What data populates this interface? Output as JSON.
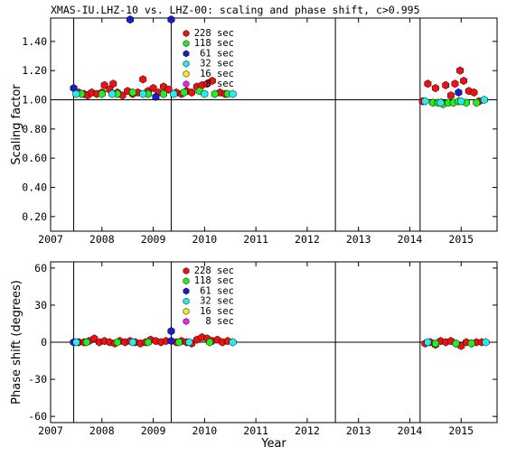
{
  "chart_data": {
    "title": "XMAS-IU.LHZ-10 vs. LHZ-00: scaling and phase shift, c>0.995",
    "xlabel": "Year",
    "xticks": [
      "2007",
      "2008",
      "2009",
      "2010",
      "2011",
      "2012",
      "2013",
      "2014",
      "2015"
    ],
    "vlines": [
      2007.45,
      2009.35,
      2012.55,
      2014.2
    ],
    "legend": [
      {
        "name": "228 sec",
        "color": "#ee1111"
      },
      {
        "name": "118 sec",
        "color": "#22ee22"
      },
      {
        "name": "61 sec",
        "color": "#1a1ad0"
      },
      {
        "name": "32 sec",
        "color": "#22eeee"
      },
      {
        "name": "16 sec",
        "color": "#eeee22"
      },
      {
        "name": "8 sec",
        "color": "#ee22ee"
      }
    ],
    "panels": [
      {
        "type": "scatter",
        "ylabel": "Scaling factor",
        "yticks": [
          "0.20",
          "0.40",
          "0.60",
          "0.80",
          "1.00",
          "1.20",
          "1.40"
        ],
        "xlim": [
          2007,
          2015.7
        ],
        "ylim": [
          0.1,
          1.56
        ],
        "hline": 1.0,
        "series": [
          {
            "name": "228 sec",
            "color": "#ee1111",
            "points": [
              [
                2007.55,
                1.05
              ],
              [
                2007.65,
                1.04
              ],
              [
                2007.72,
                1.03
              ],
              [
                2007.8,
                1.05
              ],
              [
                2007.9,
                1.04
              ],
              [
                2008.0,
                1.05
              ],
              [
                2008.05,
                1.1
              ],
              [
                2008.15,
                1.07
              ],
              [
                2008.22,
                1.11
              ],
              [
                2008.3,
                1.05
              ],
              [
                2008.4,
                1.03
              ],
              [
                2008.5,
                1.06
              ],
              [
                2008.6,
                1.04
              ],
              [
                2008.7,
                1.05
              ],
              [
                2008.8,
                1.14
              ],
              [
                2008.9,
                1.06
              ],
              [
                2009.0,
                1.08
              ],
              [
                2009.1,
                1.05
              ],
              [
                2009.2,
                1.09
              ],
              [
                2009.3,
                1.07
              ],
              [
                2009.45,
                1.05
              ],
              [
                2009.55,
                1.04
              ],
              [
                2009.65,
                1.06
              ],
              [
                2009.75,
                1.05
              ],
              [
                2009.85,
                1.09
              ],
              [
                2009.95,
                1.1
              ],
              [
                2010.05,
                1.11
              ],
              [
                2010.15,
                1.13
              ],
              [
                2010.3,
                1.05
              ],
              [
                2010.4,
                1.04
              ],
              [
                2014.25,
                0.99
              ],
              [
                2014.35,
                1.11
              ],
              [
                2014.5,
                1.08
              ],
              [
                2014.62,
                0.98
              ],
              [
                2014.7,
                1.1
              ],
              [
                2014.8,
                1.03
              ],
              [
                2014.88,
                1.11
              ],
              [
                2014.98,
                1.2
              ],
              [
                2015.05,
                1.13
              ],
              [
                2015.15,
                1.06
              ],
              [
                2015.25,
                1.05
              ],
              [
                2015.35,
                0.99
              ]
            ]
          },
          {
            "name": "118 sec",
            "color": "#22ee22",
            "points": [
              [
                2007.6,
                1.04
              ],
              [
                2008.0,
                1.04
              ],
              [
                2008.3,
                1.04
              ],
              [
                2008.6,
                1.05
              ],
              [
                2008.9,
                1.04
              ],
              [
                2009.2,
                1.04
              ],
              [
                2009.6,
                1.05
              ],
              [
                2009.9,
                1.06
              ],
              [
                2010.2,
                1.04
              ],
              [
                2010.45,
                1.04
              ],
              [
                2014.45,
                0.98
              ],
              [
                2014.55,
                0.98
              ],
              [
                2014.65,
                0.97
              ],
              [
                2014.75,
                0.98
              ],
              [
                2014.85,
                0.98
              ],
              [
                2014.95,
                0.99
              ],
              [
                2015.1,
                0.98
              ],
              [
                2015.3,
                0.98
              ]
            ]
          },
          {
            "name": "61 sec",
            "color": "#1a1ad0",
            "points": [
              [
                2007.45,
                1.08
              ],
              [
                2008.55,
                1.55
              ],
              [
                2009.05,
                1.02
              ],
              [
                2009.35,
                1.55
              ],
              [
                2014.95,
                1.05
              ]
            ]
          },
          {
            "name": "32 sec",
            "color": "#22eeee",
            "points": [
              [
                2007.5,
                1.04
              ],
              [
                2008.2,
                1.04
              ],
              [
                2008.8,
                1.04
              ],
              [
                2009.4,
                1.04
              ],
              [
                2010.0,
                1.04
              ],
              [
                2010.55,
                1.04
              ],
              [
                2014.3,
                0.99
              ],
              [
                2014.6,
                0.98
              ],
              [
                2015.0,
                0.99
              ],
              [
                2015.45,
                1.0
              ]
            ]
          },
          {
            "name": "16 sec",
            "color": "#eeee22",
            "points": []
          },
          {
            "name": "8 sec",
            "color": "#ee22ee",
            "points": []
          }
        ]
      },
      {
        "type": "scatter",
        "ylabel": "Phase shift (degrees)",
        "yticks": [
          "-60",
          "-30",
          "0",
          "30",
          "60"
        ],
        "xlim": [
          2007,
          2015.7
        ],
        "ylim": [
          -65,
          65
        ],
        "hline": 0,
        "series": [
          {
            "name": "228 sec",
            "color": "#ee1111",
            "points": [
              [
                2007.55,
                0
              ],
              [
                2007.65,
                0
              ],
              [
                2007.75,
                1
              ],
              [
                2007.85,
                3
              ],
              [
                2007.95,
                0
              ],
              [
                2008.05,
                1
              ],
              [
                2008.15,
                0
              ],
              [
                2008.25,
                -1
              ],
              [
                2008.35,
                1
              ],
              [
                2008.45,
                0
              ],
              [
                2008.55,
                1
              ],
              [
                2008.65,
                0
              ],
              [
                2008.75,
                -1
              ],
              [
                2008.85,
                0
              ],
              [
                2008.95,
                2
              ],
              [
                2009.05,
                1
              ],
              [
                2009.15,
                0
              ],
              [
                2009.25,
                1
              ],
              [
                2009.45,
                0
              ],
              [
                2009.55,
                1
              ],
              [
                2009.65,
                0
              ],
              [
                2009.75,
                -1
              ],
              [
                2009.85,
                2
              ],
              [
                2009.95,
                4
              ],
              [
                2010.05,
                3
              ],
              [
                2010.15,
                1
              ],
              [
                2010.25,
                2
              ],
              [
                2010.35,
                0
              ],
              [
                2010.45,
                1
              ],
              [
                2014.3,
                -1
              ],
              [
                2014.4,
                0
              ],
              [
                2014.5,
                -2
              ],
              [
                2014.6,
                1
              ],
              [
                2014.7,
                0
              ],
              [
                2014.8,
                1
              ],
              [
                2014.9,
                -1
              ],
              [
                2015.0,
                -3
              ],
              [
                2015.1,
                0
              ],
              [
                2015.2,
                -1
              ],
              [
                2015.3,
                0
              ],
              [
                2015.4,
                0
              ]
            ]
          },
          {
            "name": "118 sec",
            "color": "#22ee22",
            "points": [
              [
                2007.7,
                0
              ],
              [
                2008.3,
                0
              ],
              [
                2008.9,
                0
              ],
              [
                2009.5,
                0
              ],
              [
                2010.1,
                0
              ],
              [
                2014.5,
                -1
              ],
              [
                2014.9,
                -1
              ],
              [
                2015.2,
                -1
              ]
            ]
          },
          {
            "name": "61 sec",
            "color": "#1a1ad0",
            "points": [
              [
                2007.45,
                0
              ],
              [
                2009.35,
                9
              ],
              [
                2009.35,
                1
              ]
            ]
          },
          {
            "name": "32 sec",
            "color": "#22eeee",
            "points": [
              [
                2007.5,
                0
              ],
              [
                2008.6,
                0
              ],
              [
                2009.7,
                0
              ],
              [
                2010.55,
                0
              ],
              [
                2014.35,
                0
              ],
              [
                2015.48,
                0
              ]
            ]
          },
          {
            "name": "16 sec",
            "color": "#eeee22",
            "points": []
          },
          {
            "name": "8 sec",
            "color": "#ee22ee",
            "points": []
          }
        ]
      }
    ]
  }
}
